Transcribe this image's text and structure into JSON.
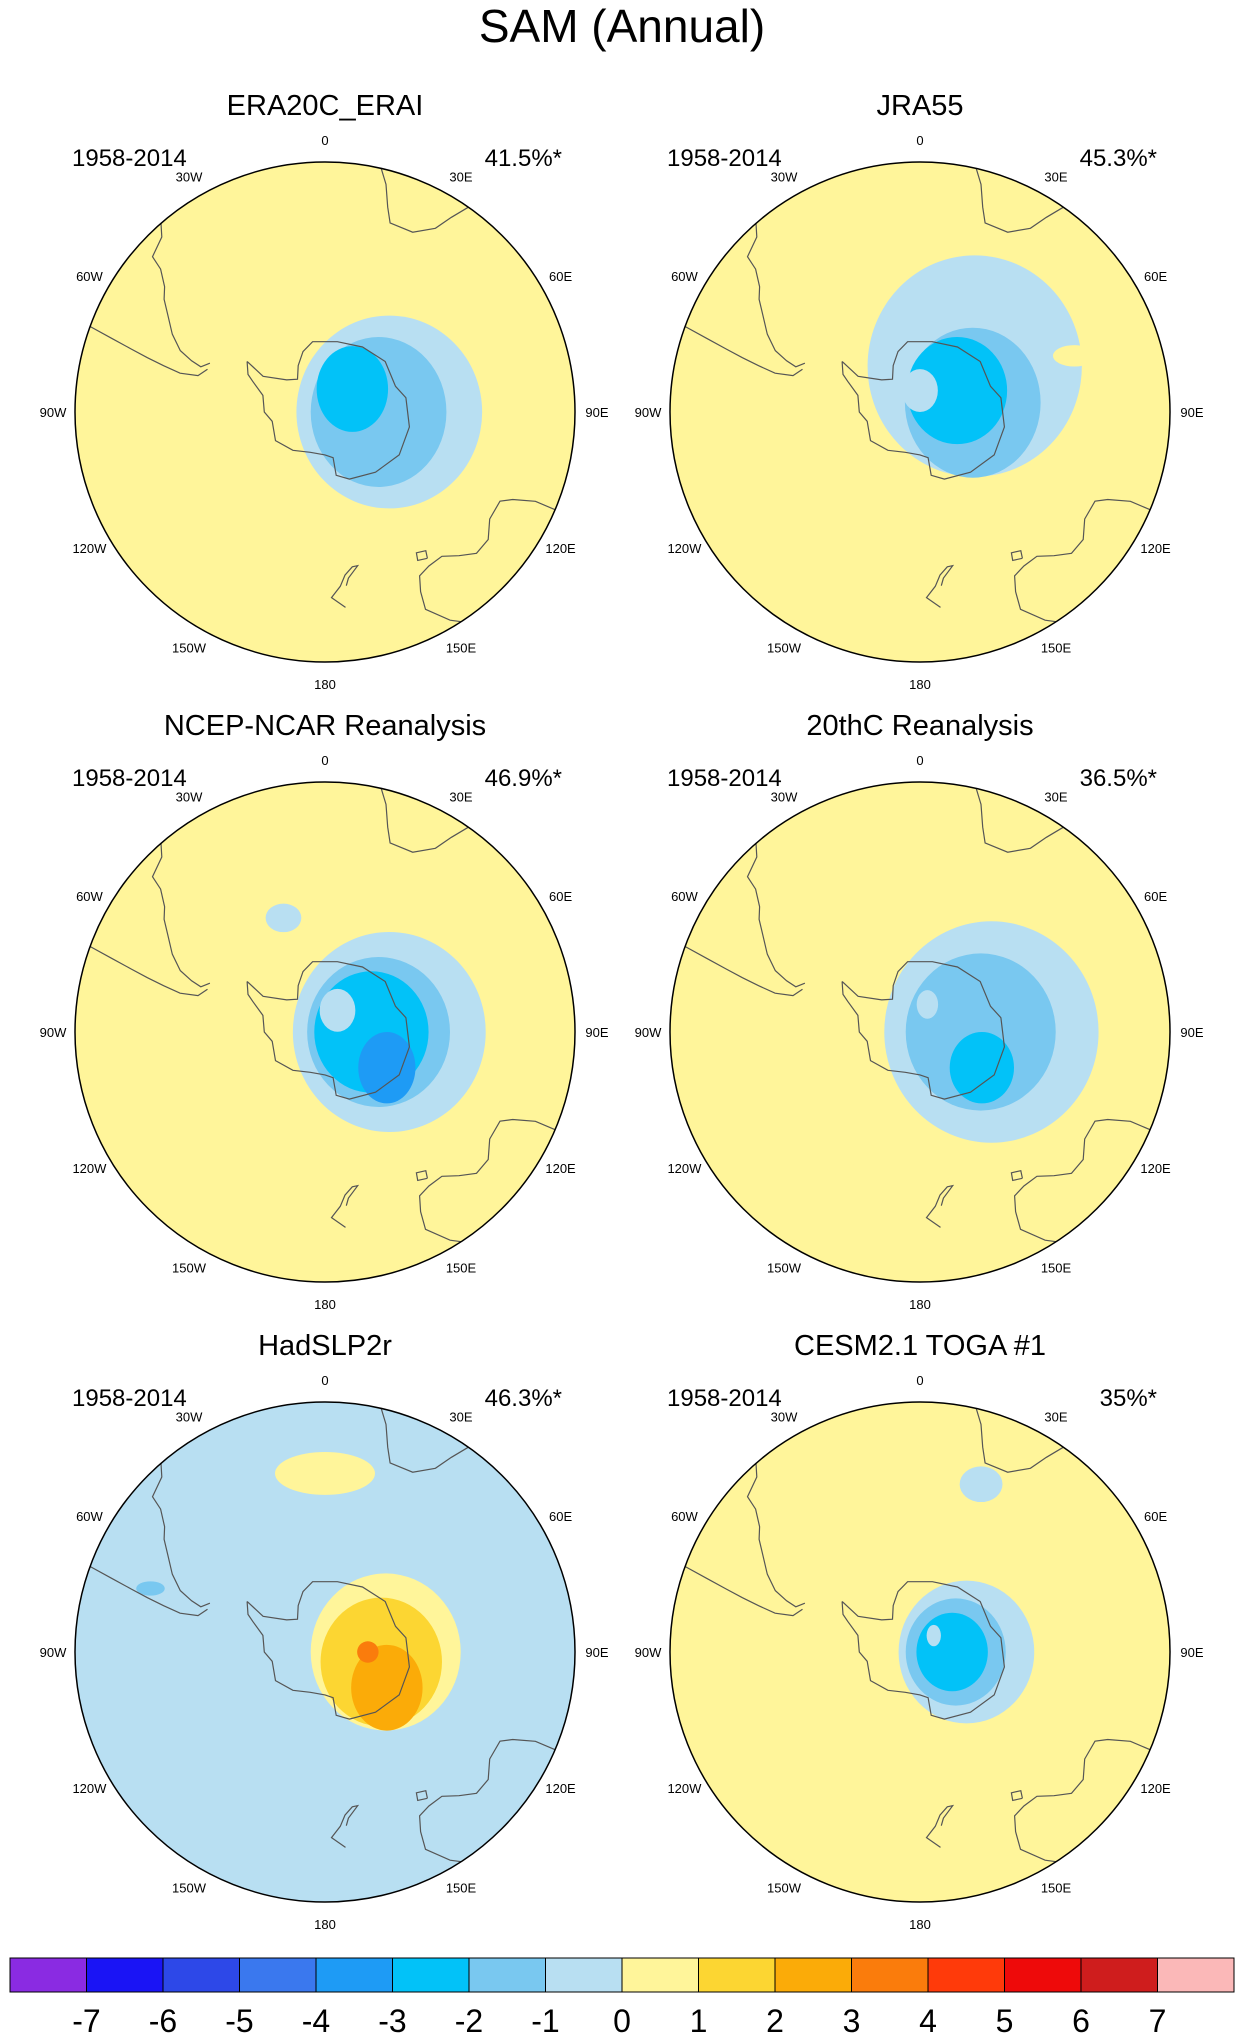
{
  "title": "SAM (Annual)",
  "colors": {
    "palette": [
      "#8a2be2",
      "#1a14f5",
      "#2d48e8",
      "#3a78ee",
      "#1e9bf5",
      "#02c2f8",
      "#79c8f0",
      "#b8dff2",
      "#fff59a",
      "#fcd632",
      "#fbab08",
      "#fa7c0c",
      "#ff3a0a",
      "#ee0a0a",
      "#cf1d1d",
      "#fbb8b8"
    ],
    "coast": "#555555"
  },
  "lon_labels": [
    "0",
    "30E",
    "60E",
    "90E",
    "120E",
    "150E",
    "180",
    "150W",
    "120W",
    "90W",
    "60W",
    "30W"
  ],
  "chart_data": [
    {
      "type": "heatmap",
      "title": "ERA20C_ERAI",
      "period": "1958-2014",
      "variance": "41.5%*",
      "field": [
        {
          "level": -1,
          "center_lat": -72,
          "center_lon": 90,
          "ext_lat": 27,
          "ext_lon": 26
        },
        {
          "level": -2,
          "center_lat": -75,
          "center_lon": 90,
          "ext_lat": 21,
          "ext_lon": 19
        },
        {
          "level": -3,
          "center_lat": -80,
          "center_lon": 50,
          "ext_lat": 12,
          "ext_lon": 10
        },
        {
          "level": 1,
          "center_lat": -47,
          "center_lon": -140,
          "ext_lat": 2,
          "ext_lon": 5
        }
      ]
    },
    {
      "type": "heatmap",
      "title": "JRA55",
      "period": "1958-2014",
      "variance": "45.3%*",
      "field": [
        {
          "level": -1,
          "center_lat": -70,
          "center_lon": 50,
          "ext_lat": 31,
          "ext_lon": 30
        },
        {
          "level": -2,
          "center_lat": -75,
          "center_lon": 80,
          "ext_lat": 21,
          "ext_lon": 19
        },
        {
          "level": -3,
          "center_lat": -78,
          "center_lon": 60,
          "ext_lat": 15,
          "ext_lon": 14
        },
        {
          "level": -1,
          "center_lat": -84,
          "center_lon": 0,
          "ext_lat": 6,
          "ext_lon": 5
        },
        {
          "level": 1,
          "center_lat": -44,
          "center_lon": 70,
          "ext_lat": 3,
          "ext_lon": 6
        }
      ]
    },
    {
      "type": "heatmap",
      "title": "NCEP-NCAR Reanalysis",
      "period": "1958-2014",
      "variance": "46.9%*",
      "field": [
        {
          "level": -1,
          "center_lat": -72,
          "center_lon": 90,
          "ext_lat": 28,
          "ext_lon": 27
        },
        {
          "level": -2,
          "center_lat": -75,
          "center_lon": 90,
          "ext_lat": 21,
          "ext_lon": 20
        },
        {
          "level": -3,
          "center_lat": -77,
          "center_lon": 90,
          "ext_lat": 17,
          "ext_lon": 16
        },
        {
          "level": -4,
          "center_lat": -70,
          "center_lon": 120,
          "ext_lat": 10,
          "ext_lon": 8
        },
        {
          "level": -1,
          "center_lat": -83,
          "center_lon": 30,
          "ext_lat": 6,
          "ext_lon": 5
        },
        {
          "level": -1,
          "center_lat": -56,
          "center_lon": -20,
          "ext_lat": 4,
          "ext_lon": 5
        },
        {
          "level": 1,
          "center_lat": -36,
          "center_lon": -75,
          "ext_lat": 2,
          "ext_lon": 3
        }
      ]
    },
    {
      "type": "heatmap",
      "title": "20thC Reanalysis",
      "period": "1958-2014",
      "variance": "36.5%*",
      "field": [
        {
          "level": -1,
          "center_lat": -70,
          "center_lon": 90,
          "ext_lat": 31,
          "ext_lon": 30
        },
        {
          "level": -2,
          "center_lat": -73,
          "center_lon": 90,
          "ext_lat": 22,
          "ext_lon": 21
        },
        {
          "level": -3,
          "center_lat": -70,
          "center_lon": 120,
          "ext_lat": 10,
          "ext_lon": 9
        },
        {
          "level": -1,
          "center_lat": -82,
          "center_lon": 15,
          "ext_lat": 4,
          "ext_lon": 3
        },
        {
          "level": 1,
          "center_lat": -46,
          "center_lon": -150,
          "ext_lat": 2,
          "ext_lon": 4
        }
      ]
    },
    {
      "type": "heatmap",
      "title": "HadSLP2r",
      "period": "1958-2014",
      "variance": "46.3%*",
      "background_level": -1,
      "field": [
        {
          "level": 1,
          "center_lat": -73,
          "center_lon": 90,
          "ext_lat": 22,
          "ext_lon": 21
        },
        {
          "level": 2,
          "center_lat": -74,
          "center_lon": 100,
          "ext_lat": 18,
          "ext_lon": 17
        },
        {
          "level": 3,
          "center_lat": -70,
          "center_lon": 120,
          "ext_lat": 12,
          "ext_lon": 10
        },
        {
          "level": 4,
          "center_lat": -78,
          "center_lon": 90,
          "ext_lat": 3,
          "ext_lon": 3
        },
        {
          "level": 1,
          "center_lat": -40,
          "center_lon": 0,
          "ext_lat": 6,
          "ext_lon": 14
        },
        {
          "level": -2,
          "center_lat": -38,
          "center_lon": -70,
          "ext_lat": 2,
          "ext_lon": 4
        }
      ]
    },
    {
      "type": "heatmap",
      "title": "CESM2.1 TOGA #1",
      "period": "1958-2014",
      "variance": "35%*",
      "field": [
        {
          "level": -1,
          "center_lat": -77,
          "center_lon": 90,
          "ext_lat": 20,
          "ext_lon": 19
        },
        {
          "level": -2,
          "center_lat": -80,
          "center_lon": 90,
          "ext_lat": 15,
          "ext_lon": 14
        },
        {
          "level": -3,
          "center_lat": -81,
          "center_lon": 90,
          "ext_lat": 11,
          "ext_lon": 10
        },
        {
          "level": -1,
          "center_lat": -84,
          "center_lon": 40,
          "ext_lat": 3,
          "ext_lon": 2
        },
        {
          "level": 1,
          "center_lat": -54,
          "center_lon": 90,
          "ext_lat": 3,
          "ext_lon": 4
        },
        {
          "level": -1,
          "center_lat": -40,
          "center_lon": 20,
          "ext_lat": 5,
          "ext_lon": 6
        }
      ]
    }
  ],
  "colorbar": {
    "labels": [
      "-7",
      "-6",
      "-5",
      "-4",
      "-3",
      "-2",
      "-1",
      "0",
      "1",
      "2",
      "3",
      "4",
      "5",
      "6",
      "7"
    ]
  }
}
